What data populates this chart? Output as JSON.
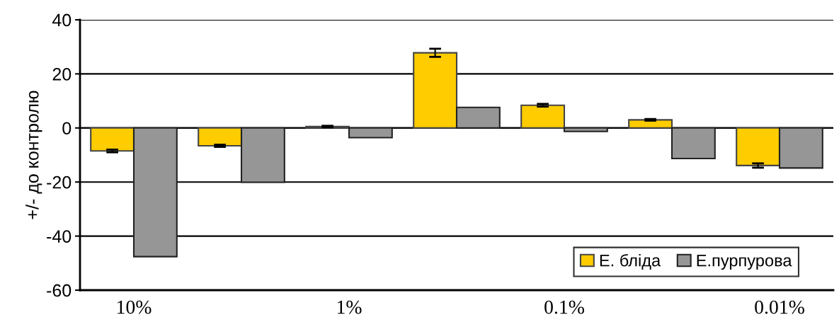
{
  "chart_data": {
    "type": "bar",
    "ylabel": "+/- до контролю",
    "categories": [
      "10%",
      null,
      "1%",
      null,
      "0.1%",
      null,
      "0.01%"
    ],
    "series": [
      {
        "name": "Е. бліда",
        "color": "#ffcc00",
        "values": [
          -8.5,
          -6.6,
          0.5,
          27.8,
          8.4,
          3.0,
          -13.9
        ],
        "errors": [
          0.5,
          0.4,
          0.3,
          1.5,
          0.5,
          0.3,
          0.8
        ]
      },
      {
        "name": "Е.пурпурова",
        "color": "#969696",
        "values": [
          -47.6,
          -20.1,
          -3.6,
          7.6,
          -1.3,
          -11.3,
          -14.8
        ]
      }
    ],
    "ylim": [
      -60,
      40
    ],
    "yticks": [
      -60,
      -40,
      -20,
      0,
      20,
      40
    ],
    "grid": "y",
    "legend": "bottom right"
  }
}
